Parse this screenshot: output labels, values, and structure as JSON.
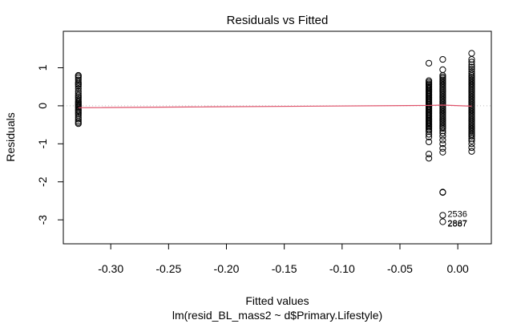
{
  "chart_data": {
    "type": "scatter",
    "title": "Residuals vs Fitted",
    "xlabel": "Fitted values",
    "ylabel": "Residuals",
    "subtitle": "lm(resid_BL_mass2 ~ d$Primary.Lifestyle)",
    "xlim": [
      -0.341,
      0.029
    ],
    "ylim": [
      -3.63,
      1.96
    ],
    "xticks": [
      -0.3,
      -0.25,
      -0.2,
      -0.15,
      -0.1,
      -0.05,
      0.0
    ],
    "xtick_labels": [
      "-0.30",
      "-0.25",
      "-0.20",
      "-0.15",
      "-0.10",
      "-0.05",
      "0.00"
    ],
    "yticks": [
      -3,
      -2,
      -1,
      0,
      1
    ],
    "ytick_labels": [
      "-3",
      "-2",
      "-1",
      "0",
      "1"
    ],
    "reference_line": {
      "y": 0,
      "style": "dotted",
      "color": "#bebebe"
    },
    "smoother": {
      "color": "#df536b",
      "x": [
        -0.328,
        -0.025,
        -0.013,
        0.012
      ],
      "y": [
        -0.05,
        0.01,
        0.02,
        -0.01
      ]
    },
    "groups": [
      {
        "x": -0.328,
        "y": [
          0.8,
          0.77,
          0.73,
          0.68,
          0.62,
          0.58,
          0.55,
          0.51,
          0.45,
          0.38,
          0.33,
          0.28,
          0.24,
          0.2,
          0.16,
          0.12,
          0.09,
          0.06,
          0.03,
          0.0,
          -0.03,
          -0.06,
          -0.1,
          -0.13,
          -0.17,
          -0.21,
          -0.25,
          -0.3,
          -0.35,
          -0.4,
          -0.44,
          -0.47
        ]
      },
      {
        "x": -0.025,
        "y": [
          1.12,
          0.66,
          0.62,
          0.58,
          0.55,
          0.52,
          0.49,
          0.46,
          0.43,
          0.4,
          0.37,
          0.34,
          0.31,
          0.28,
          0.25,
          0.22,
          0.19,
          0.16,
          0.13,
          0.1,
          0.07,
          0.04,
          0.01,
          -0.02,
          -0.05,
          -0.08,
          -0.11,
          -0.14,
          -0.17,
          -0.2,
          -0.23,
          -0.26,
          -0.29,
          -0.32,
          -0.35,
          -0.38,
          -0.41,
          -0.44,
          -0.47,
          -0.5,
          -0.53,
          -0.56,
          -0.6,
          -0.64,
          -0.68,
          -0.75,
          -0.82,
          -0.95,
          -1.27,
          -1.38
        ]
      },
      {
        "x": -0.013,
        "y": [
          1.22,
          0.95,
          0.8,
          0.76,
          0.72,
          0.68,
          0.64,
          0.6,
          0.56,
          0.52,
          0.48,
          0.44,
          0.4,
          0.36,
          0.32,
          0.28,
          0.24,
          0.2,
          0.16,
          0.12,
          0.08,
          0.04,
          0.0,
          -0.04,
          -0.08,
          -0.12,
          -0.16,
          -0.2,
          -0.24,
          -0.28,
          -0.32,
          -0.36,
          -0.4,
          -0.44,
          -0.48,
          -0.52,
          -0.56,
          -0.6,
          -0.66,
          -0.72,
          -0.8,
          -0.9,
          -1.0,
          -1.12,
          -1.22,
          -2.27,
          -2.28,
          -2.88,
          -3.05
        ]
      },
      {
        "x": 0.012,
        "y": [
          1.38,
          1.22,
          1.15,
          1.08,
          1.02,
          0.96,
          0.9,
          0.85,
          0.8,
          0.76,
          0.72,
          0.68,
          0.64,
          0.6,
          0.56,
          0.52,
          0.48,
          0.44,
          0.4,
          0.36,
          0.32,
          0.28,
          0.24,
          0.2,
          0.16,
          0.12,
          0.08,
          0.04,
          0.0,
          -0.04,
          -0.08,
          -0.12,
          -0.16,
          -0.2,
          -0.24,
          -0.28,
          -0.32,
          -0.36,
          -0.4,
          -0.44,
          -0.48,
          -0.52,
          -0.56,
          -0.6,
          -0.64,
          -0.68,
          -0.72,
          -0.76,
          -0.8,
          -0.86,
          -0.92,
          -1.0,
          -1.1,
          -1.2
        ]
      }
    ],
    "annotations": [
      {
        "text": "2536",
        "x": -0.013,
        "y": -2.88
      },
      {
        "text": "2887",
        "x": -0.013,
        "y": -3.05
      },
      {
        "text": "2867",
        "x": -0.013,
        "y": -3.06
      }
    ]
  }
}
